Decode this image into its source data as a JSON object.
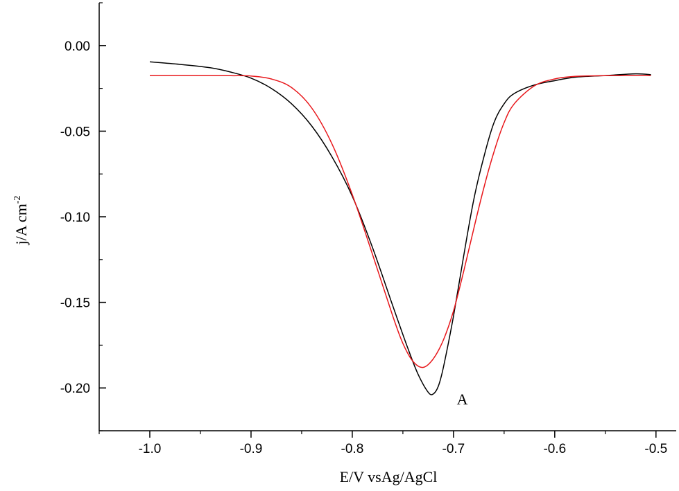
{
  "chart_data": {
    "type": "line",
    "title": "",
    "xlabel": "E/V vsAg/AgCl",
    "ylabel_main": "j/A cm",
    "ylabel_sup": "-2",
    "xlim": [
      -1.05,
      -0.48
    ],
    "ylim": [
      -0.225,
      0.025
    ],
    "x_ticks": [
      -1.0,
      -0.9,
      -0.8,
      -0.7,
      -0.6,
      -0.5
    ],
    "x_tick_labels": [
      "-1.0",
      "-0.9",
      "-0.8",
      "-0.7",
      "-0.6",
      "-0.5"
    ],
    "y_ticks": [
      0.0,
      -0.05,
      -0.1,
      -0.15,
      -0.2
    ],
    "y_tick_labels": [
      "0.00",
      "-0.05",
      "-0.10",
      "-0.15",
      "-0.20"
    ],
    "grid": false,
    "annotations": [
      {
        "text": "A",
        "x": -0.705,
        "y": -0.204
      }
    ],
    "series": [
      {
        "color": "#000000",
        "x": [
          -1.0,
          -0.97,
          -0.94,
          -0.92,
          -0.9,
          -0.88,
          -0.86,
          -0.84,
          -0.82,
          -0.8,
          -0.78,
          -0.76,
          -0.745,
          -0.735,
          -0.725,
          -0.72,
          -0.715,
          -0.71,
          -0.7,
          -0.69,
          -0.68,
          -0.67,
          -0.66,
          -0.65,
          -0.64,
          -0.62,
          -0.6,
          -0.58,
          -0.55,
          -0.52,
          -0.505
        ],
        "y": [
          -0.0095,
          -0.011,
          -0.013,
          -0.0155,
          -0.019,
          -0.025,
          -0.034,
          -0.047,
          -0.065,
          -0.088,
          -0.118,
          -0.152,
          -0.177,
          -0.192,
          -0.2025,
          -0.2035,
          -0.199,
          -0.188,
          -0.158,
          -0.123,
          -0.09,
          -0.065,
          -0.045,
          -0.034,
          -0.028,
          -0.023,
          -0.0205,
          -0.0185,
          -0.0175,
          -0.0165,
          -0.017
        ]
      },
      {
        "color": "#e8161a",
        "x": [
          -1.0,
          -0.95,
          -0.92,
          -0.9,
          -0.88,
          -0.86,
          -0.84,
          -0.82,
          -0.8,
          -0.78,
          -0.76,
          -0.75,
          -0.74,
          -0.73,
          -0.72,
          -0.71,
          -0.7,
          -0.69,
          -0.68,
          -0.67,
          -0.66,
          -0.65,
          -0.64,
          -0.62,
          -0.6,
          -0.58,
          -0.55,
          -0.52,
          -0.505
        ],
        "y": [
          -0.0175,
          -0.0175,
          -0.0176,
          -0.0178,
          -0.0195,
          -0.0245,
          -0.0365,
          -0.0575,
          -0.087,
          -0.122,
          -0.158,
          -0.174,
          -0.1845,
          -0.188,
          -0.183,
          -0.172,
          -0.155,
          -0.132,
          -0.107,
          -0.083,
          -0.062,
          -0.045,
          -0.034,
          -0.0235,
          -0.0195,
          -0.018,
          -0.0176,
          -0.0175,
          -0.0175
        ]
      }
    ]
  }
}
